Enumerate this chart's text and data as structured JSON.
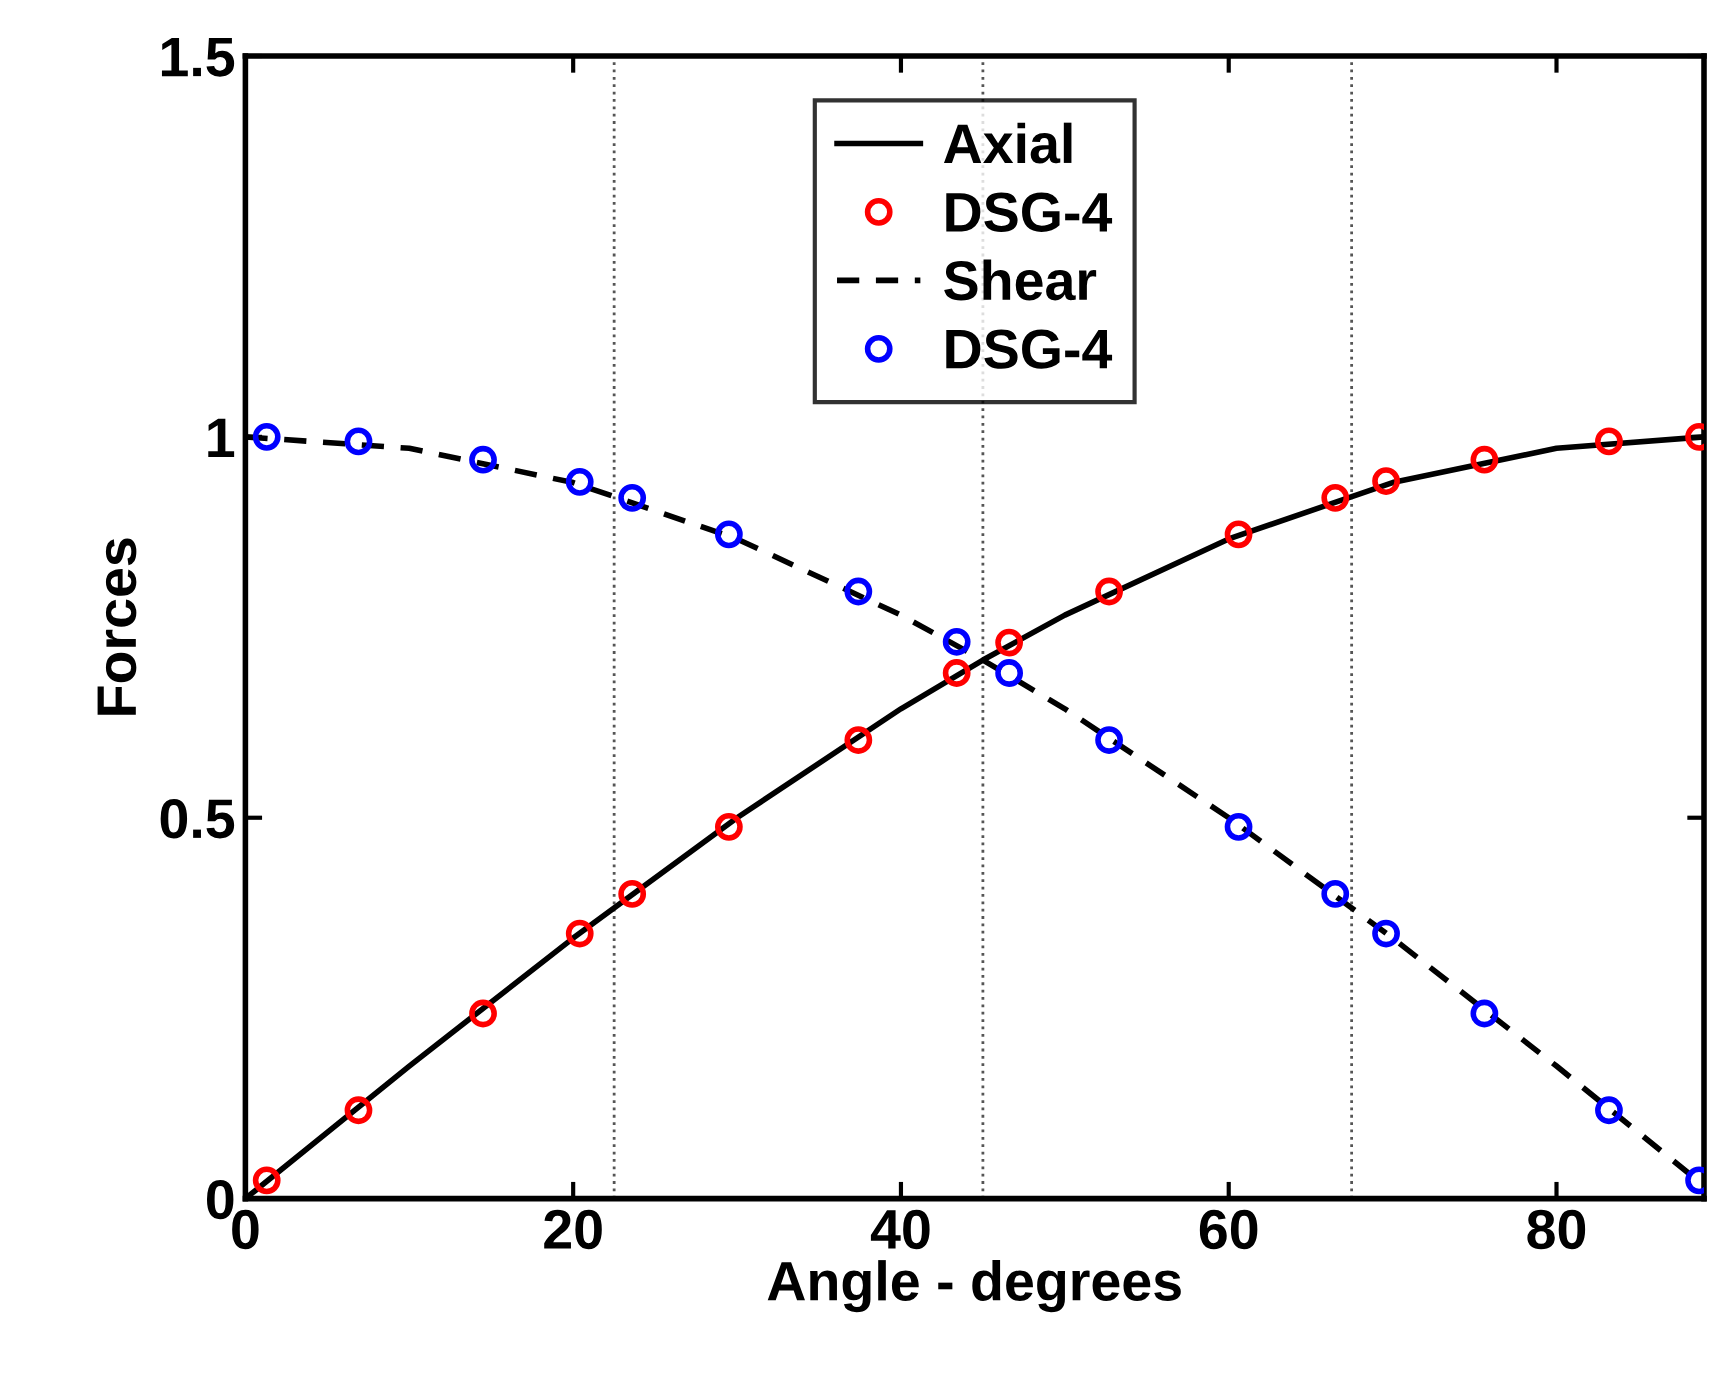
{
  "chart_data": {
    "type": "line",
    "xlabel": "Angle - degrees",
    "ylabel": "Forces",
    "xlim": [
      0,
      89
    ],
    "ylim": [
      0,
      1.5
    ],
    "xticks": [
      0,
      20,
      40,
      60,
      80
    ],
    "yticks": [
      0,
      0.5,
      1,
      1.5
    ],
    "grid": false,
    "legend": "top",
    "series": [
      {
        "name": "Axial",
        "line_style": "solid",
        "marker": "none",
        "color": "#000000",
        "x": [
          0,
          10,
          20,
          30,
          40,
          45,
          50,
          60,
          70,
          80,
          89
        ],
        "values": [
          0,
          0.174,
          0.342,
          0.5,
          0.643,
          0.707,
          0.766,
          0.866,
          0.94,
          0.985,
          1.0
        ]
      },
      {
        "name": "DSG-4",
        "type": "scatter",
        "marker": "circle",
        "color": "#ff0000",
        "x": [
          1.3,
          6.9,
          14.5,
          20.4,
          23.6,
          29.5,
          37.4,
          43.4,
          46.6,
          52.7,
          60.6,
          66.5,
          69.6,
          75.6,
          83.2,
          88.7
        ],
        "values": [
          0.024,
          0.116,
          0.243,
          0.348,
          0.4,
          0.488,
          0.602,
          0.69,
          0.73,
          0.797,
          0.872,
          0.92,
          0.942,
          0.97,
          0.994,
          1.0
        ]
      },
      {
        "name": "Shear",
        "line_style": "dashed",
        "marker": "none",
        "color": "#000000",
        "x": [
          0,
          10,
          20,
          30,
          40,
          45,
          50,
          60,
          70,
          80,
          89
        ],
        "values": [
          1.0,
          0.985,
          0.94,
          0.866,
          0.766,
          0.707,
          0.643,
          0.5,
          0.342,
          0.174,
          0.017
        ]
      },
      {
        "name": "DSG-4",
        "type": "scatter",
        "marker": "circle",
        "color": "#0000ff",
        "x": [
          1.3,
          6.9,
          14.5,
          20.4,
          23.6,
          29.5,
          37.4,
          43.4,
          46.6,
          52.7,
          60.6,
          66.5,
          69.6,
          75.6,
          83.2,
          88.7
        ],
        "values": [
          1.0,
          0.994,
          0.97,
          0.941,
          0.92,
          0.872,
          0.797,
          0.731,
          0.69,
          0.602,
          0.488,
          0.4,
          0.348,
          0.243,
          0.116,
          0.024
        ]
      }
    ],
    "ref_lines": [
      {
        "axis": "x",
        "value": 22.5,
        "color": "#555555",
        "line_style": "dotted"
      },
      {
        "axis": "x",
        "value": 45,
        "color": "#555555",
        "line_style": "dotted"
      },
      {
        "axis": "x",
        "value": 67.5,
        "color": "#555555",
        "line_style": "dotted"
      }
    ]
  }
}
